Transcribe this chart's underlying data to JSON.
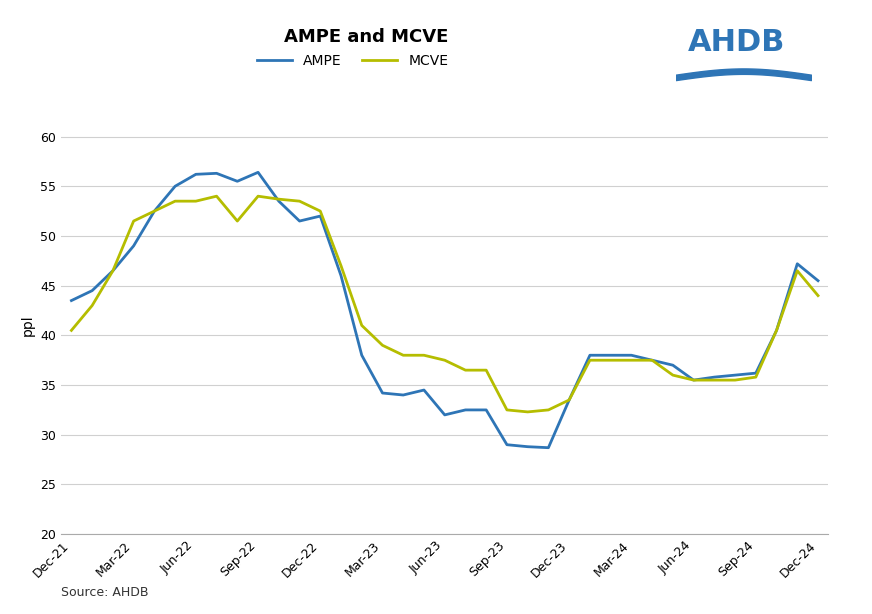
{
  "title": "AMPE and MCVE",
  "ylabel": "ppl",
  "source": "Source: AHDB",
  "ylim": [
    20,
    62
  ],
  "yticks": [
    20,
    25,
    30,
    35,
    40,
    45,
    50,
    55,
    60
  ],
  "ampe_color": "#2e75b6",
  "mcve_color": "#b5bd00",
  "background_color": "#ffffff",
  "grid_color": "#d0d0d0",
  "x_labels": [
    "Dec-21",
    "Mar-22",
    "Jun-22",
    "Sep-22",
    "Dec-22",
    "Mar-23",
    "Jun-23",
    "Sep-23",
    "Dec-23",
    "Mar-24",
    "Jun-24",
    "Sep-24",
    "Dec-24"
  ],
  "title_fontsize": 13,
  "label_fontsize": 10,
  "tick_fontsize": 9,
  "line_width": 2.0,
  "ahdb_color": "#2e75b6",
  "legend_fontsize": 10,
  "ampe_monthly": [
    43.5,
    44.5,
    46.5,
    49.0,
    52.5,
    55.0,
    56.2,
    56.3,
    55.5,
    56.4,
    53.5,
    51.5,
    52.0,
    46.0,
    38.0,
    34.2,
    34.0,
    34.5,
    32.0,
    32.5,
    32.5,
    29.0,
    28.8,
    28.7,
    33.5,
    38.0,
    38.0,
    38.0,
    37.5,
    37.0,
    35.5,
    35.8,
    36.0,
    36.2,
    40.5,
    47.2,
    45.5
  ],
  "mcve_monthly": [
    40.5,
    43.0,
    46.5,
    51.5,
    52.5,
    53.5,
    53.5,
    54.0,
    51.5,
    54.0,
    53.7,
    53.5,
    52.5,
    47.0,
    41.0,
    39.0,
    38.0,
    38.0,
    37.5,
    36.5,
    36.5,
    32.5,
    32.3,
    32.5,
    33.5,
    37.5,
    37.5,
    37.5,
    37.5,
    36.0,
    35.5,
    35.5,
    35.5,
    35.8,
    40.5,
    46.5,
    44.0
  ]
}
